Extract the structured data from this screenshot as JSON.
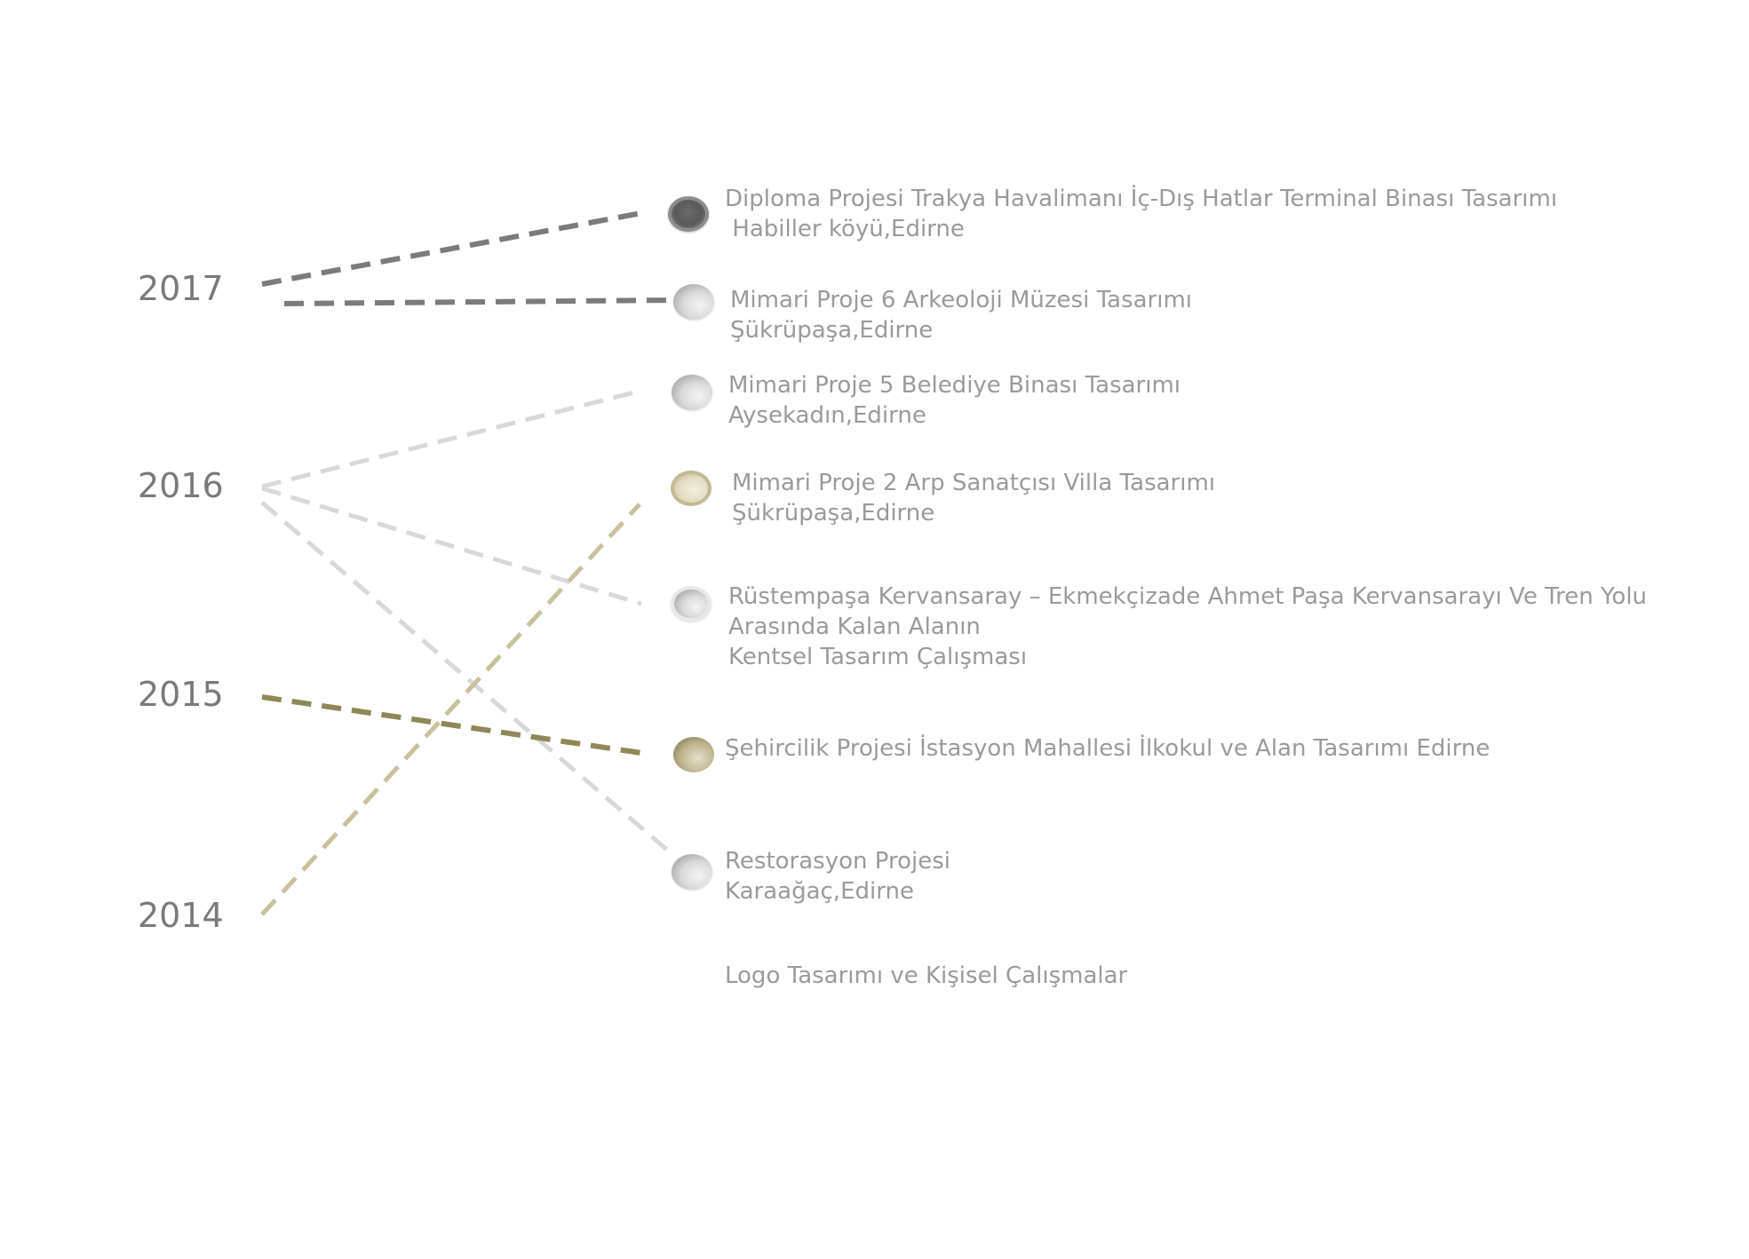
{
  "years": {
    "y2017": "2017",
    "y2016": "2016",
    "y2015": "2015",
    "y2014": "2014"
  },
  "colors": {
    "dark": "#7b7b7b",
    "light": "#d8d8d8",
    "cream": "#c9c19b",
    "olive": "#8e8758",
    "text": "#9a9a9a",
    "year_text": "#7a7a7a"
  },
  "projects": [
    {
      "line1": "Diploma Projesi Trakya Havalimanı İç-Dış Hatlar Terminal Binası Tasarımı",
      "line2": " Habiller köyü,Edirne",
      "year": "2017",
      "marker": "dark"
    },
    {
      "line1": "Mimari Proje 6 Arkeoloji Müzesi Tasarımı",
      "line2": "Şükrüpaşa,Edirne",
      "year": "2017",
      "marker": "light"
    },
    {
      "line1": "Mimari Proje 5 Belediye Binası Tasarımı",
      "line2": "Aysekadın,Edirne",
      "year": "2016",
      "marker": "light"
    },
    {
      "line1": "Mimari Proje 2 Arp Sanatçısı Villa Tasarımı",
      "line2": "Şükrüpaşa,Edirne",
      "year": "2014",
      "marker": "cream"
    },
    {
      "line1": "Rüstempaşa Kervansaray – Ekmekçizade Ahmet Paşa Kervansarayı Ve Tren Yolu",
      "line2": "Arasında Kalan Alanın",
      "line3": "Kentsel Tasarım Çalışması",
      "year": "2016",
      "marker": "light"
    },
    {
      "line1": "Şehircilik Projesi İstasyon Mahallesi İlkokul ve Alan Tasarımı Edirne",
      "year": "2015",
      "marker": "olive"
    },
    {
      "line1": "Restorasyon Projesi",
      "line2": "Karaağaç,Edirne",
      "year": "2016",
      "marker": "light"
    }
  ],
  "footer": {
    "label": "Logo Tasarımı ve Kişisel Çalışmalar"
  }
}
